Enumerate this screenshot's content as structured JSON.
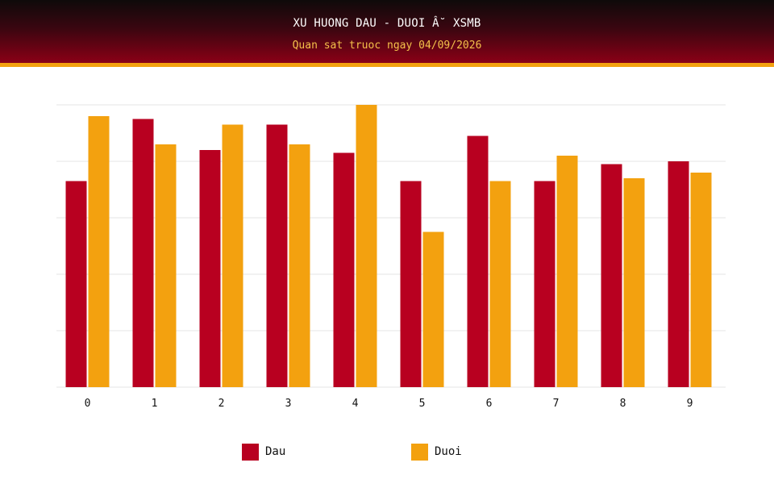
{
  "header": {
    "title": "XU HUONG DAU - DUOI Â˘ XSMB",
    "subtitle": "Quan sat truoc ngay 04/09/2026"
  },
  "colors": {
    "dau": "#b80020",
    "duoi": "#f3a10f",
    "grid": "#e6e6e6"
  },
  "chart_data": {
    "type": "bar",
    "title": "XU HUONG DAU - DUOI Â˘ XSMB",
    "subtitle": "Quan sat truoc ngay 04/09/2026",
    "categories": [
      "0",
      "1",
      "2",
      "3",
      "4",
      "5",
      "6",
      "7",
      "8",
      "9"
    ],
    "series": [
      {
        "name": "Dau",
        "values": [
          7.3,
          9.5,
          8.4,
          9.3,
          8.3,
          7.3,
          8.9,
          7.3,
          7.9,
          8.0
        ]
      },
      {
        "name": "Duoi",
        "values": [
          9.6,
          8.6,
          9.3,
          8.6,
          10.0,
          5.5,
          7.3,
          8.2,
          7.4,
          7.6
        ]
      }
    ],
    "ylim": [
      0,
      10
    ],
    "grid": true,
    "y_tick_labels_visible": false,
    "legend_position": "bottom"
  },
  "legend": {
    "dau_label": "Dau",
    "duoi_label": "Duoi"
  }
}
